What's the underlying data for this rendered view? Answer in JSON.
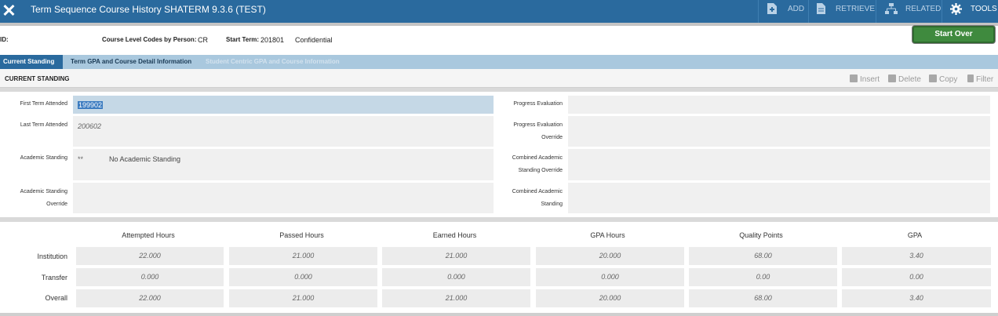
{
  "header": {
    "close_icon": "close-icon",
    "title": "Term Sequence Course History SHATERM 9.3.6 (TEST)",
    "actions": [
      {
        "label": "ADD",
        "icon": "add-document-icon"
      },
      {
        "label": "RETRIEVE",
        "icon": "retrieve-document-icon"
      },
      {
        "label": "RELATED",
        "icon": "sitemap-icon"
      },
      {
        "label": "TOOLS",
        "icon": "gear-icon"
      }
    ],
    "colors": {
      "bar": "#2a6a9e",
      "accent_green": "#3f8a3e"
    }
  },
  "key_block": {
    "id_label": "ID:",
    "course_level_label": "Course Level Codes by Person:",
    "course_level_value": "CR",
    "start_term_label": "Start Term:",
    "start_term_value": "201801",
    "confidential": "Confidential",
    "start_over": "Start Over"
  },
  "tabs": [
    {
      "label": "Current Standing",
      "state": "active"
    },
    {
      "label": "Term GPA and Course Detail Information",
      "state": "inactive"
    },
    {
      "label": "Student Centric GPA and Course Information",
      "state": "disabled"
    }
  ],
  "section": {
    "title": "CURRENT STANDING",
    "tools": [
      {
        "label": "Insert",
        "icon": "plus-icon"
      },
      {
        "label": "Delete",
        "icon": "minus-icon"
      },
      {
        "label": "Copy",
        "icon": "copy-icon"
      },
      {
        "label": "Filter",
        "icon": "filter-icon"
      }
    ]
  },
  "fields": {
    "first_term_label": "First Term Attended",
    "first_term_value": "199902",
    "last_term_label": "Last Term Attended",
    "last_term_value": "200602",
    "academic_standing_label": "Academic Standing",
    "academic_standing_code": "**",
    "academic_standing_desc": "No Academic Standing",
    "academic_standing_override_label_1": "Academic Standing",
    "academic_standing_override_label_2": "Override",
    "progress_eval_label": "Progress Evaluation",
    "progress_eval_override_label_1": "Progress Evaluation",
    "progress_eval_override_label_2": "Override",
    "combined_override_label_1": "Combined Academic",
    "combined_override_label_2": "Standing Override",
    "combined_label_1": "Combined Academic",
    "combined_label_2": "Standing"
  },
  "gpa_table": {
    "columns": [
      "Attempted Hours",
      "Passed Hours",
      "Earned Hours",
      "GPA Hours",
      "Quality Points",
      "GPA"
    ],
    "rows": [
      {
        "label": "Institution",
        "values": [
          "22.000",
          "21.000",
          "21.000",
          "20.000",
          "68.00",
          "3.40"
        ]
      },
      {
        "label": "Transfer",
        "values": [
          "0.000",
          "0.000",
          "0.000",
          "0.000",
          "0.00",
          "0.00"
        ]
      },
      {
        "label": "Overall",
        "values": [
          "22.000",
          "21.000",
          "21.000",
          "20.000",
          "68.00",
          "3.40"
        ]
      }
    ]
  }
}
